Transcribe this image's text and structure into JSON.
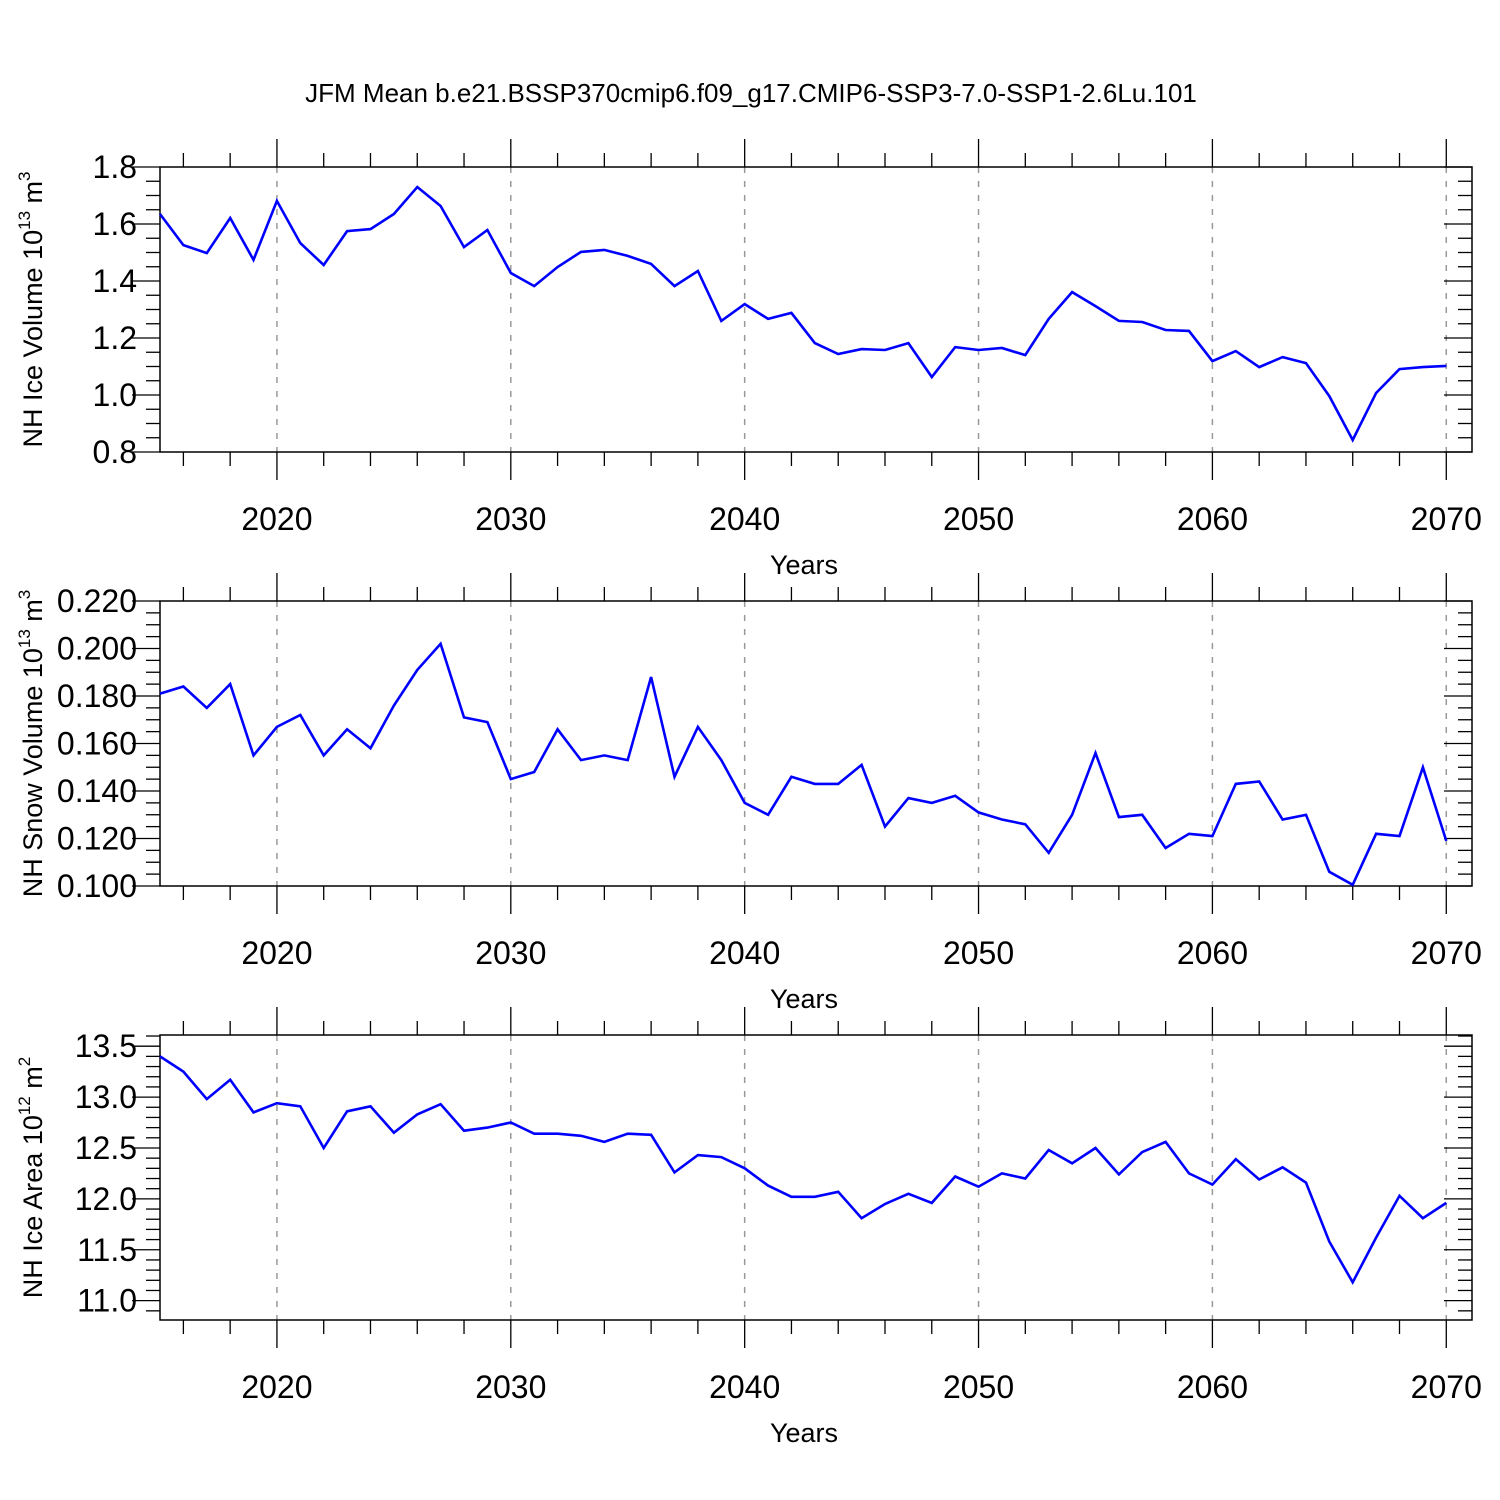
{
  "chart_data": [
    {
      "type": "line",
      "title": "JFM Mean b.e21.BSSP370cmip6.f09_g17.CMIP6-SSP3-7.0-SSP1-2.6Lu.101",
      "xlabel": "Years",
      "ylabel": "NH Ice Volume 10",
      "ylabel_exp": "13",
      "ylabel_unit": " m",
      "ylabel_unit_exp": "3",
      "xlim": [
        2015,
        2071.1
      ],
      "ylim": [
        0.8,
        1.8
      ],
      "xticks": [
        2020,
        2030,
        2040,
        2050,
        2060,
        2070
      ],
      "xtick_labels": [
        "2020",
        "2030",
        "2040",
        "2050",
        "2060",
        "2070"
      ],
      "yticks": [
        0.8,
        1.0,
        1.2,
        1.4,
        1.6,
        1.8
      ],
      "ytick_labels": [
        "0.8",
        "1.0",
        "1.2",
        "1.4",
        "1.6",
        "1.8"
      ],
      "grid": "vertical dashed at decades",
      "color": "#0000ff",
      "x_start": 2015,
      "values": [
        1.635,
        1.526,
        1.498,
        1.621,
        1.474,
        1.681,
        1.533,
        1.456,
        1.575,
        1.582,
        1.635,
        1.73,
        1.663,
        1.519,
        1.579,
        1.428,
        1.382,
        1.449,
        1.502,
        1.509,
        1.488,
        1.46,
        1.382,
        1.435,
        1.26,
        1.319,
        1.267,
        1.288,
        1.182,
        1.144,
        1.161,
        1.158,
        1.182,
        1.063,
        1.168,
        1.158,
        1.165,
        1.14,
        1.267,
        1.361,
        1.312,
        1.26,
        1.256,
        1.228,
        1.225,
        1.119,
        1.154,
        1.098,
        1.133,
        1.112,
        0.996,
        0.842,
        1.007,
        1.091,
        1.098,
        1.102
      ]
    },
    {
      "type": "line",
      "xlabel": "Years",
      "ylabel": "NH Snow Volume 10",
      "ylabel_exp": "13",
      "ylabel_unit": " m",
      "ylabel_unit_exp": "3",
      "xlim": [
        2015,
        2071.1
      ],
      "ylim": [
        0.1,
        0.22
      ],
      "xticks": [
        2020,
        2030,
        2040,
        2050,
        2060,
        2070
      ],
      "xtick_labels": [
        "2020",
        "2030",
        "2040",
        "2050",
        "2060",
        "2070"
      ],
      "yticks": [
        0.1,
        0.12,
        0.14,
        0.16,
        0.18,
        0.2,
        0.22
      ],
      "ytick_labels": [
        "0.100",
        "0.120",
        "0.140",
        "0.160",
        "0.180",
        "0.200",
        "0.220"
      ],
      "grid": "vertical dashed at decades",
      "color": "#0000ff",
      "x_start": 2015,
      "values": [
        0.181,
        0.184,
        0.175,
        0.185,
        0.155,
        0.167,
        0.172,
        0.155,
        0.166,
        0.158,
        0.176,
        0.191,
        0.202,
        0.171,
        0.169,
        0.145,
        0.148,
        0.166,
        0.153,
        0.155,
        0.153,
        0.188,
        0.146,
        0.167,
        0.153,
        0.135,
        0.13,
        0.146,
        0.143,
        0.143,
        0.151,
        0.125,
        0.137,
        0.135,
        0.138,
        0.131,
        0.128,
        0.126,
        0.114,
        0.13,
        0.156,
        0.129,
        0.13,
        0.116,
        0.122,
        0.121,
        0.143,
        0.144,
        0.128,
        0.13,
        0.106,
        0.1005,
        0.122,
        0.121,
        0.15,
        0.119
      ]
    },
    {
      "type": "line",
      "xlabel": "Years",
      "ylabel": "NH Ice Area 10",
      "ylabel_exp": "12",
      "ylabel_unit": " m",
      "ylabel_unit_exp": "2",
      "xlim": [
        2015,
        2071.1
      ],
      "ylim": [
        10.81,
        13.61
      ],
      "xticks": [
        2020,
        2030,
        2040,
        2050,
        2060,
        2070
      ],
      "xtick_labels": [
        "2020",
        "2030",
        "2040",
        "2050",
        "2060",
        "2070"
      ],
      "yticks": [
        11.0,
        11.5,
        12.0,
        12.5,
        13.0,
        13.5
      ],
      "ytick_labels": [
        "11.0",
        "11.5",
        "12.0",
        "12.5",
        "13.0",
        "13.5"
      ],
      "grid": "vertical dashed at decades",
      "color": "#0000ff",
      "x_start": 2015,
      "values": [
        13.4,
        13.25,
        12.98,
        13.17,
        12.85,
        12.94,
        12.91,
        12.5,
        12.86,
        12.91,
        12.65,
        12.83,
        12.93,
        12.67,
        12.7,
        12.75,
        12.64,
        12.64,
        12.62,
        12.56,
        12.64,
        12.63,
        12.26,
        12.43,
        12.41,
        12.3,
        12.13,
        12.02,
        12.02,
        12.07,
        11.81,
        11.95,
        12.05,
        11.96,
        12.22,
        12.12,
        12.25,
        12.2,
        12.48,
        12.35,
        12.5,
        12.24,
        12.46,
        12.56,
        12.25,
        12.14,
        12.39,
        12.19,
        12.31,
        12.16,
        11.58,
        11.18,
        11.62,
        12.03,
        11.81,
        11.96
      ]
    }
  ]
}
